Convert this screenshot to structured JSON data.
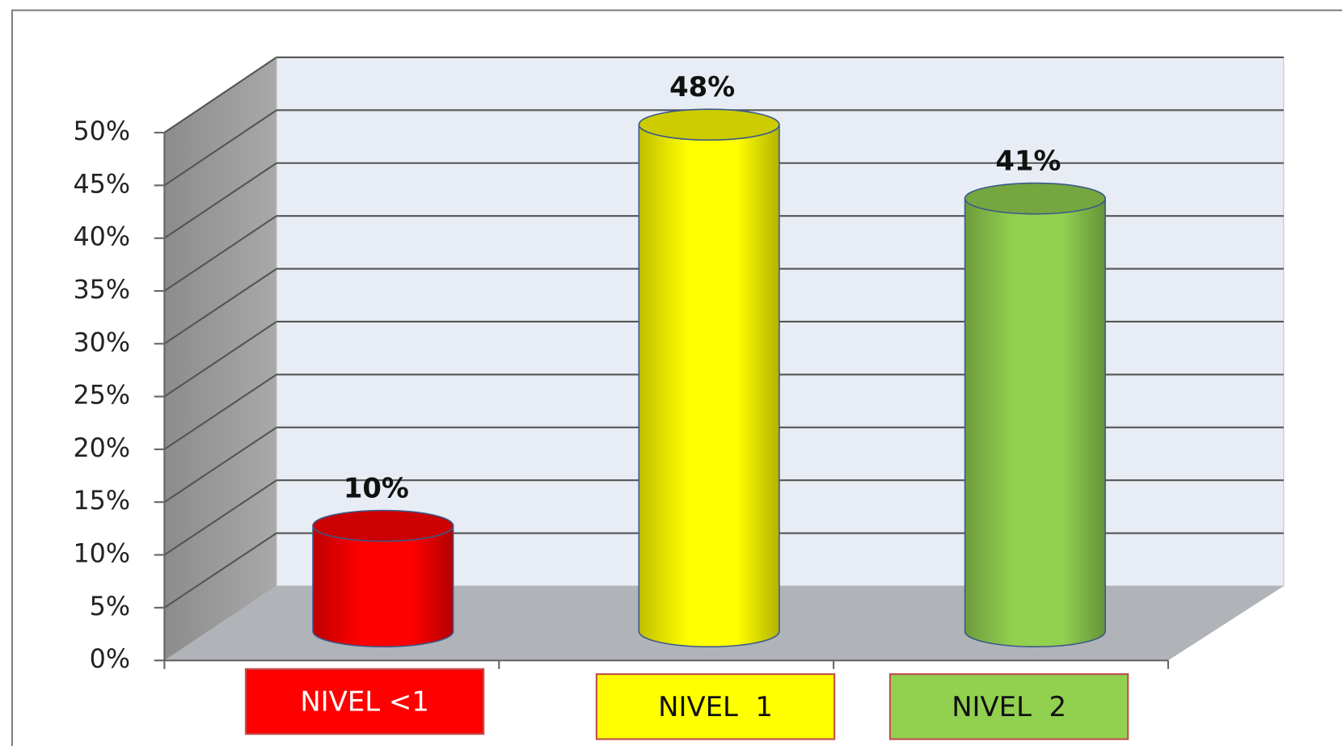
{
  "chart_data": {
    "type": "bar3d",
    "categories": [
      "NIVEL <1",
      "NIVEL  1",
      "NIVEL  2"
    ],
    "values": [
      10,
      48,
      41
    ],
    "value_labels": [
      "10%",
      "48%",
      "41%"
    ],
    "colors": [
      "#ff0000",
      "#ffff00",
      "#92d050"
    ],
    "ylim": [
      0,
      50
    ],
    "yticks": [
      {
        "value": 0,
        "label": "0%"
      },
      {
        "value": 5,
        "label": "5%"
      },
      {
        "value": 10,
        "label": "10%"
      },
      {
        "value": 15,
        "label": "15%"
      },
      {
        "value": 20,
        "label": "20%"
      },
      {
        "value": 25,
        "label": "25%"
      },
      {
        "value": 30,
        "label": "30%"
      },
      {
        "value": 35,
        "label": "35%"
      },
      {
        "value": 40,
        "label": "40%"
      },
      {
        "value": 45,
        "label": "45%"
      },
      {
        "value": 50,
        "label": "50%"
      }
    ],
    "grid": true
  }
}
